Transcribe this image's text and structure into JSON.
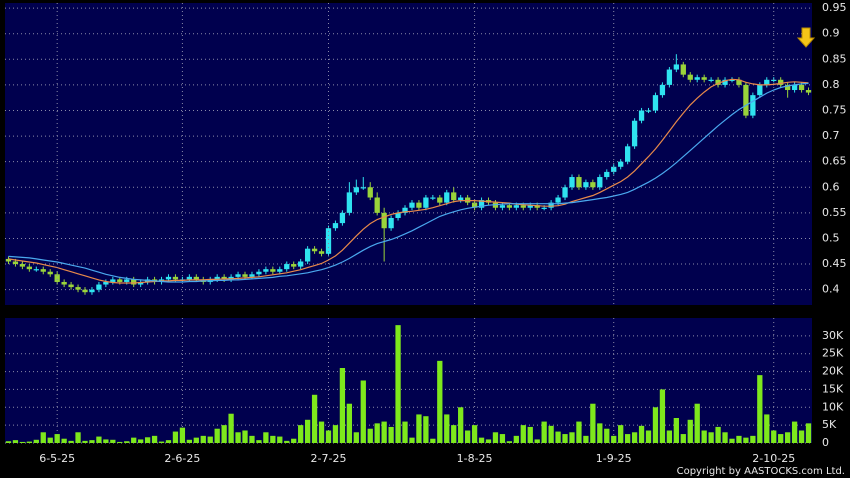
{
  "chart_data": [
    {
      "type": "candlestick",
      "up_color": "#2fe3f0",
      "down_color": "#9ad43a",
      "grid": true,
      "ylim": [
        0.37,
        0.96
      ],
      "yticks": [
        0.4,
        0.45,
        0.5,
        0.55,
        0.6,
        0.65,
        0.7,
        0.75,
        0.8,
        0.85,
        0.9,
        0.95
      ],
      "open": [
        0.46,
        0.455,
        0.45,
        0.445,
        0.44,
        0.44,
        0.435,
        0.43,
        0.415,
        0.41,
        0.405,
        0.4,
        0.395,
        0.4,
        0.41,
        0.415,
        0.42,
        0.415,
        0.42,
        0.41,
        0.415,
        0.42,
        0.415,
        0.42,
        0.425,
        0.42,
        0.42,
        0.425,
        0.42,
        0.415,
        0.42,
        0.425,
        0.42,
        0.425,
        0.43,
        0.425,
        0.43,
        0.435,
        0.44,
        0.435,
        0.44,
        0.45,
        0.445,
        0.455,
        0.48,
        0.475,
        0.47,
        0.52,
        0.53,
        0.55,
        0.59,
        0.6,
        0.6,
        0.58,
        0.55,
        0.52,
        0.54,
        0.55,
        0.56,
        0.57,
        0.56,
        0.58,
        0.58,
        0.57,
        0.59,
        0.575,
        0.58,
        0.57,
        0.56,
        0.575,
        0.57,
        0.56,
        0.565,
        0.56,
        0.565,
        0.56,
        0.565,
        0.56,
        0.56,
        0.57,
        0.58,
        0.6,
        0.62,
        0.6,
        0.61,
        0.6,
        0.62,
        0.63,
        0.64,
        0.65,
        0.68,
        0.73,
        0.75,
        0.75,
        0.78,
        0.8,
        0.83,
        0.84,
        0.82,
        0.81,
        0.815,
        0.81,
        0.81,
        0.8,
        0.81,
        0.81,
        0.8,
        0.74,
        0.78,
        0.8,
        0.81,
        0.81,
        0.8,
        0.79,
        0.8,
        0.79
      ],
      "high": [
        0.465,
        0.46,
        0.455,
        0.45,
        0.445,
        0.445,
        0.44,
        0.435,
        0.42,
        0.415,
        0.41,
        0.405,
        0.405,
        0.415,
        0.42,
        0.425,
        0.425,
        0.425,
        0.425,
        0.42,
        0.425,
        0.425,
        0.425,
        0.43,
        0.43,
        0.425,
        0.43,
        0.43,
        0.425,
        0.425,
        0.43,
        0.43,
        0.43,
        0.435,
        0.435,
        0.435,
        0.44,
        0.445,
        0.445,
        0.445,
        0.455,
        0.455,
        0.46,
        0.485,
        0.485,
        0.48,
        0.525,
        0.535,
        0.555,
        0.61,
        0.615,
        0.62,
        0.61,
        0.59,
        0.56,
        0.545,
        0.555,
        0.565,
        0.575,
        0.575,
        0.585,
        0.585,
        0.585,
        0.595,
        0.6,
        0.585,
        0.585,
        0.575,
        0.58,
        0.58,
        0.575,
        0.57,
        0.57,
        0.57,
        0.57,
        0.57,
        0.57,
        0.565,
        0.575,
        0.585,
        0.605,
        0.625,
        0.625,
        0.615,
        0.615,
        0.625,
        0.635,
        0.645,
        0.655,
        0.685,
        0.735,
        0.755,
        0.755,
        0.785,
        0.805,
        0.835,
        0.86,
        0.845,
        0.825,
        0.82,
        0.82,
        0.815,
        0.815,
        0.815,
        0.815,
        0.815,
        0.805,
        0.785,
        0.805,
        0.815,
        0.815,
        0.815,
        0.805,
        0.805,
        0.805,
        0.795
      ],
      "low": [
        0.45,
        0.445,
        0.44,
        0.435,
        0.435,
        0.43,
        0.425,
        0.41,
        0.405,
        0.4,
        0.395,
        0.39,
        0.39,
        0.395,
        0.405,
        0.41,
        0.41,
        0.41,
        0.405,
        0.405,
        0.41,
        0.41,
        0.41,
        0.415,
        0.415,
        0.415,
        0.415,
        0.415,
        0.41,
        0.41,
        0.415,
        0.415,
        0.415,
        0.42,
        0.42,
        0.42,
        0.425,
        0.43,
        0.43,
        0.43,
        0.435,
        0.44,
        0.44,
        0.45,
        0.47,
        0.465,
        0.465,
        0.515,
        0.525,
        0.545,
        0.585,
        0.595,
        0.575,
        0.545,
        0.455,
        0.515,
        0.535,
        0.545,
        0.555,
        0.555,
        0.555,
        0.575,
        0.565,
        0.565,
        0.57,
        0.57,
        0.565,
        0.555,
        0.555,
        0.565,
        0.555,
        0.555,
        0.555,
        0.555,
        0.555,
        0.555,
        0.555,
        0.555,
        0.555,
        0.565,
        0.575,
        0.595,
        0.595,
        0.595,
        0.595,
        0.595,
        0.615,
        0.625,
        0.635,
        0.645,
        0.675,
        0.725,
        0.745,
        0.745,
        0.775,
        0.795,
        0.825,
        0.815,
        0.805,
        0.805,
        0.805,
        0.805,
        0.795,
        0.795,
        0.805,
        0.795,
        0.735,
        0.735,
        0.775,
        0.795,
        0.805,
        0.795,
        0.775,
        0.785,
        0.785,
        0.78
      ],
      "close": [
        0.455,
        0.45,
        0.445,
        0.44,
        0.44,
        0.435,
        0.43,
        0.415,
        0.41,
        0.405,
        0.4,
        0.395,
        0.4,
        0.41,
        0.415,
        0.42,
        0.415,
        0.42,
        0.41,
        0.415,
        0.42,
        0.415,
        0.42,
        0.425,
        0.42,
        0.42,
        0.425,
        0.42,
        0.415,
        0.42,
        0.425,
        0.42,
        0.425,
        0.43,
        0.425,
        0.43,
        0.435,
        0.44,
        0.435,
        0.44,
        0.45,
        0.445,
        0.455,
        0.48,
        0.475,
        0.47,
        0.52,
        0.53,
        0.55,
        0.59,
        0.6,
        0.6,
        0.58,
        0.55,
        0.52,
        0.54,
        0.55,
        0.56,
        0.57,
        0.56,
        0.58,
        0.58,
        0.57,
        0.59,
        0.575,
        0.58,
        0.57,
        0.56,
        0.575,
        0.57,
        0.56,
        0.565,
        0.56,
        0.565,
        0.56,
        0.565,
        0.56,
        0.56,
        0.57,
        0.58,
        0.6,
        0.62,
        0.6,
        0.61,
        0.6,
        0.62,
        0.63,
        0.64,
        0.65,
        0.68,
        0.73,
        0.75,
        0.75,
        0.78,
        0.8,
        0.83,
        0.84,
        0.82,
        0.81,
        0.815,
        0.81,
        0.81,
        0.8,
        0.81,
        0.81,
        0.8,
        0.74,
        0.78,
        0.8,
        0.81,
        0.81,
        0.8,
        0.79,
        0.8,
        0.79,
        0.785
      ],
      "series": [
        {
          "color": "#e8894a",
          "values": [
            0.46,
            0.458,
            0.456,
            0.454,
            0.452,
            0.449,
            0.446,
            0.443,
            0.439,
            0.435,
            0.431,
            0.427,
            0.423,
            0.419,
            0.416,
            0.414,
            0.413,
            0.413,
            0.413,
            0.414,
            0.415,
            0.416,
            0.417,
            0.417,
            0.418,
            0.418,
            0.419,
            0.419,
            0.419,
            0.42,
            0.42,
            0.421,
            0.421,
            0.422,
            0.423,
            0.424,
            0.425,
            0.427,
            0.429,
            0.431,
            0.433,
            0.436,
            0.439,
            0.443,
            0.447,
            0.451,
            0.458,
            0.466,
            0.477,
            0.491,
            0.505,
            0.518,
            0.529,
            0.537,
            0.542,
            0.547,
            0.55,
            0.552,
            0.553,
            0.555,
            0.557,
            0.56,
            0.564,
            0.568,
            0.572,
            0.574,
            0.574,
            0.574,
            0.573,
            0.572,
            0.571,
            0.57,
            0.569,
            0.567,
            0.566,
            0.565,
            0.564,
            0.563,
            0.563,
            0.564,
            0.567,
            0.572,
            0.576,
            0.58,
            0.584,
            0.59,
            0.597,
            0.604,
            0.611,
            0.62,
            0.632,
            0.646,
            0.66,
            0.675,
            0.692,
            0.71,
            0.728,
            0.745,
            0.761,
            0.774,
            0.786,
            0.796,
            0.803,
            0.808,
            0.811,
            0.81,
            0.805,
            0.802,
            0.8,
            0.8,
            0.801,
            0.803,
            0.805,
            0.806,
            0.805,
            0.804
          ]
        },
        {
          "color": "#4aa8ee",
          "values": [
            0.465,
            0.464,
            0.463,
            0.462,
            0.46,
            0.458,
            0.456,
            0.454,
            0.451,
            0.448,
            0.445,
            0.442,
            0.438,
            0.434,
            0.43,
            0.427,
            0.424,
            0.422,
            0.42,
            0.419,
            0.418,
            0.417,
            0.416,
            0.415,
            0.415,
            0.415,
            0.416,
            0.416,
            0.417,
            0.417,
            0.418,
            0.418,
            0.419,
            0.419,
            0.42,
            0.421,
            0.422,
            0.423,
            0.424,
            0.426,
            0.427,
            0.429,
            0.431,
            0.433,
            0.436,
            0.439,
            0.443,
            0.448,
            0.454,
            0.461,
            0.469,
            0.477,
            0.484,
            0.49,
            0.494,
            0.498,
            0.503,
            0.509,
            0.515,
            0.522,
            0.529,
            0.536,
            0.543,
            0.548,
            0.552,
            0.556,
            0.559,
            0.561,
            0.563,
            0.565,
            0.566,
            0.567,
            0.568,
            0.568,
            0.568,
            0.568,
            0.568,
            0.568,
            0.568,
            0.568,
            0.569,
            0.57,
            0.572,
            0.574,
            0.576,
            0.578,
            0.58,
            0.583,
            0.586,
            0.59,
            0.596,
            0.603,
            0.61,
            0.618,
            0.627,
            0.637,
            0.648,
            0.66,
            0.672,
            0.684,
            0.696,
            0.708,
            0.72,
            0.731,
            0.742,
            0.752,
            0.76,
            0.768,
            0.776,
            0.784,
            0.79,
            0.795,
            0.798,
            0.8,
            0.802,
            0.803
          ]
        }
      ]
    },
    {
      "type": "bar",
      "color": "#7ee81c",
      "grid": true,
      "ylim": [
        0,
        35000
      ],
      "yticks": [
        0,
        {
          "value": 5000,
          "label": "5K"
        },
        {
          "value": 10000,
          "label": "10K"
        },
        {
          "value": 15000,
          "label": "15K"
        },
        {
          "value": 20000,
          "label": "20K"
        },
        {
          "value": 25000,
          "label": "25K"
        },
        {
          "value": 30000,
          "label": "30K"
        }
      ],
      "categories": [
        null,
        null,
        null,
        null,
        null,
        null,
        null,
        "6-5-25",
        null,
        null,
        null,
        null,
        null,
        null,
        null,
        null,
        null,
        null,
        null,
        null,
        null,
        null,
        null,
        null,
        null,
        "2-6-25",
        null,
        null,
        null,
        null,
        null,
        null,
        null,
        null,
        null,
        null,
        null,
        null,
        null,
        null,
        null,
        null,
        null,
        null,
        null,
        null,
        "2-7-25",
        null,
        null,
        null,
        null,
        null,
        null,
        null,
        null,
        null,
        null,
        null,
        null,
        null,
        null,
        null,
        null,
        null,
        null,
        null,
        null,
        "1-8-25",
        null,
        null,
        null,
        null,
        null,
        null,
        null,
        null,
        null,
        null,
        null,
        null,
        null,
        null,
        null,
        null,
        null,
        null,
        null,
        "1-9-25",
        null,
        null,
        null,
        null,
        null,
        null,
        null,
        null,
        null,
        null,
        null,
        null,
        null,
        null,
        null,
        null,
        null,
        null,
        null,
        null,
        null,
        null,
        "2-10-25",
        null,
        null,
        null,
        null,
        null
      ],
      "values": [
        500,
        800,
        300,
        400,
        900,
        3000,
        1500,
        2500,
        1200,
        600,
        3000,
        600,
        800,
        1800,
        1000,
        900,
        300,
        500,
        1500,
        1000,
        1600,
        2000,
        400,
        800,
        3200,
        4300,
        900,
        1500,
        2000,
        1800,
        4000,
        5000,
        8200,
        3000,
        3500,
        2000,
        800,
        3000,
        2000,
        1800,
        600,
        1200,
        5000,
        6500,
        13500,
        6000,
        3500,
        5000,
        21000,
        11000,
        3000,
        17500,
        4000,
        5500,
        6000,
        4500,
        33000,
        6000,
        1500,
        8000,
        7500,
        1200,
        23000,
        8000,
        5000,
        10000,
        3500,
        5000,
        1500,
        1000,
        3000,
        2500,
        500,
        2000,
        5000,
        4500,
        1000,
        6000,
        4800,
        3200,
        2500,
        3000,
        6000,
        2000,
        11000,
        5500,
        4000,
        2000,
        5000,
        2500,
        3000,
        4800,
        3500,
        10000,
        15000,
        3500,
        7000,
        2500,
        6500,
        11000,
        3500,
        3000,
        4500,
        3000,
        1200,
        2000,
        1500,
        2000,
        19000,
        8000,
        3500,
        2500,
        3000,
        6000,
        3500,
        5500
      ]
    }
  ],
  "copyright": "Copyright by AASTOCKS.com Ltd."
}
